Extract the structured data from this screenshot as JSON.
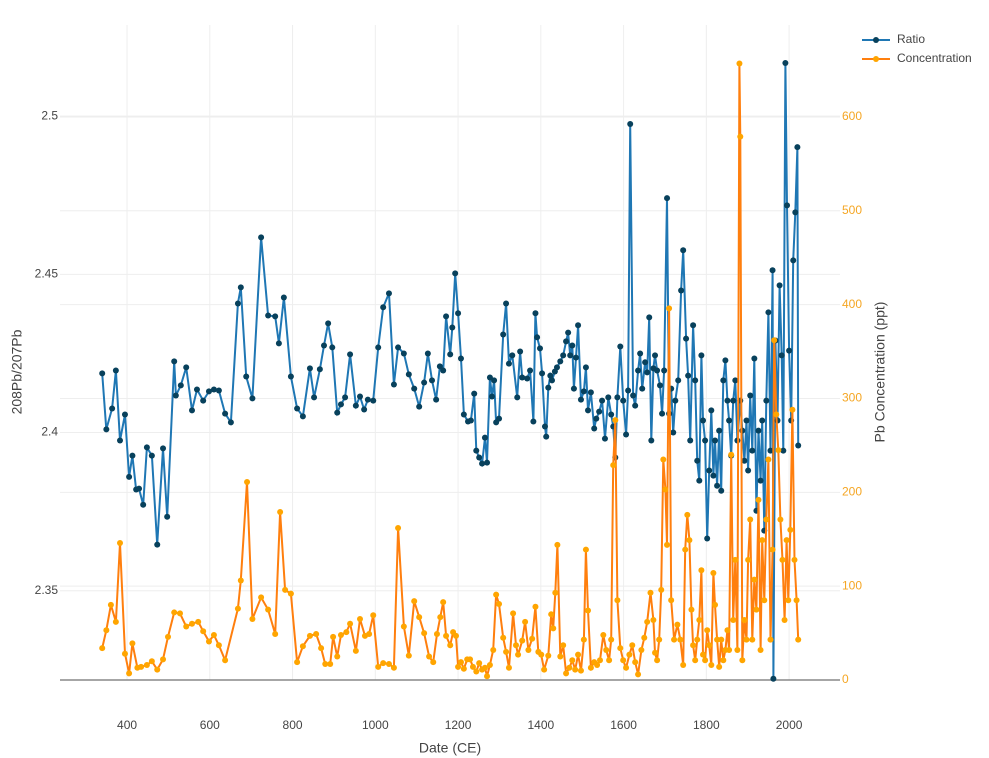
{
  "chart_data": {
    "type": "line",
    "x_label": "Date (CE)",
    "y_label": "208Pb/207Pb",
    "y2_label": "Pb Concentration (ppt)",
    "xlim": [
      238,
      2123
    ],
    "xticks": [
      400,
      600,
      800,
      1000,
      1200,
      1400,
      1600,
      1800,
      2000
    ],
    "ylim": [
      2.3218,
      2.5288
    ],
    "yticks": [
      2.35,
      2.4,
      2.45,
      2.5
    ],
    "y2lim": [
      0,
      698
    ],
    "y2ticks": [
      0,
      100,
      200,
      300,
      400,
      500,
      600
    ],
    "y2_color": "#f5a623",
    "grid": true,
    "legend": "top-right",
    "series": [
      {
        "name": "Ratio",
        "color": "#1f77b4",
        "marker_color": "#08415c",
        "axis": "y",
        "x": [
          340,
          350,
          364,
          373,
          383,
          395,
          405,
          413,
          422,
          429,
          439,
          448,
          460,
          473,
          487,
          497,
          514,
          518,
          530,
          543,
          557,
          569,
          584,
          598,
          610,
          622,
          637,
          651,
          668,
          675,
          688,
          703,
          724,
          741,
          758,
          767,
          779,
          796,
          811,
          825,
          842,
          852,
          866,
          876,
          886,
          896,
          908,
          917,
          927,
          939,
          953,
          963,
          973,
          982,
          995,
          1007,
          1019,
          1033,
          1045,
          1055,
          1069,
          1081,
          1094,
          1106,
          1118,
          1127,
          1137,
          1147,
          1156,
          1164,
          1171,
          1181,
          1186,
          1193,
          1200,
          1207,
          1214,
          1224,
          1231,
          1239,
          1244,
          1251,
          1258,
          1265,
          1270,
          1277,
          1282,
          1287,
          1292,
          1299,
          1309,
          1316,
          1323,
          1331,
          1343,
          1350,
          1355,
          1367,
          1374,
          1382,
          1387,
          1391,
          1398,
          1403,
          1410,
          1413,
          1418,
          1423,
          1427,
          1434,
          1439,
          1447,
          1454,
          1461,
          1466,
          1471,
          1476,
          1480,
          1485,
          1490,
          1497,
          1504,
          1509,
          1514,
          1521,
          1529,
          1534,
          1541,
          1548,
          1555,
          1563,
          1570,
          1575,
          1580,
          1585,
          1592,
          1599,
          1606,
          1611,
          1616,
          1623,
          1628,
          1635,
          1640,
          1645,
          1652,
          1657,
          1662,
          1667,
          1672,
          1676,
          1681,
          1688,
          1693,
          1698,
          1705,
          1710,
          1715,
          1720,
          1725,
          1732,
          1739,
          1744,
          1751,
          1756,
          1761,
          1768,
          1773,
          1778,
          1783,
          1788,
          1792,
          1797,
          1802,
          1807,
          1812,
          1817,
          1821,
          1826,
          1831,
          1836,
          1841,
          1846,
          1851,
          1855,
          1860,
          1865,
          1870,
          1875,
          1882,
          1887,
          1892,
          1897,
          1901,
          1906,
          1911,
          1916,
          1921,
          1926,
          1931,
          1935,
          1940,
          1945,
          1950,
          1955,
          1960,
          1962,
          1967,
          1972,
          1977,
          1982,
          1986,
          1991,
          1995,
          2000,
          2005,
          2010,
          2015,
          2020,
          2022
        ],
        "values": [
          2.4187,
          2.401,
          2.4076,
          2.4196,
          2.3975,
          2.4057,
          2.386,
          2.3927,
          2.382,
          2.3823,
          2.3772,
          2.3953,
          2.3927,
          2.3646,
          2.395,
          2.3734,
          2.4225,
          2.4117,
          2.4149,
          2.4206,
          2.407,
          2.4136,
          2.4101,
          2.413,
          2.4136,
          2.4133,
          2.406,
          2.4032,
          2.4408,
          2.4459,
          2.4177,
          2.4108,
          2.4617,
          2.437,
          2.4367,
          2.4282,
          2.4427,
          2.4177,
          2.4076,
          2.4051,
          2.4203,
          2.4111,
          2.42,
          2.4275,
          2.4345,
          2.4269,
          2.4063,
          2.4089,
          2.4111,
          2.4247,
          2.4085,
          2.4114,
          2.4073,
          2.4104,
          2.4101,
          2.4269,
          2.4396,
          2.444,
          2.4152,
          2.4269,
          2.425,
          2.4184,
          2.4139,
          2.4082,
          2.4158,
          2.425,
          2.4165,
          2.4104,
          2.4209,
          2.4196,
          2.4367,
          2.4247,
          2.4332,
          2.4503,
          2.4377,
          2.4234,
          2.4057,
          2.4035,
          2.4038,
          2.4123,
          2.3943,
          2.3921,
          2.3902,
          2.3984,
          2.3905,
          2.4174,
          2.4114,
          2.4165,
          2.4032,
          2.4044,
          2.431,
          2.4408,
          2.4218,
          2.4244,
          2.4111,
          2.4256,
          2.4174,
          2.4171,
          2.4196,
          2.4035,
          2.4377,
          2.4301,
          2.4266,
          2.4187,
          2.4019,
          2.3987,
          2.4142,
          2.418,
          2.4165,
          2.4193,
          2.4206,
          2.4225,
          2.4244,
          2.4288,
          2.4316,
          2.4244,
          2.4275,
          2.4139,
          2.4237,
          2.4339,
          2.4104,
          2.413,
          2.4206,
          2.407,
          2.4127,
          2.4013,
          2.4044,
          2.4066,
          2.4101,
          2.3981,
          2.4111,
          2.4057,
          2.4019,
          2.3921,
          2.4111,
          2.4272,
          2.4101,
          2.3994,
          2.4133,
          2.4975,
          2.4117,
          2.4085,
          2.4196,
          2.425,
          2.4139,
          2.4222,
          2.419,
          2.4364,
          2.3975,
          2.4203,
          2.4244,
          2.4196,
          2.4149,
          2.406,
          2.4196,
          2.4741,
          2.406,
          2.4139,
          2.4,
          2.4101,
          2.4165,
          2.4449,
          2.4576,
          2.4297,
          2.418,
          2.3975,
          2.4339,
          2.4165,
          2.3911,
          2.3848,
          2.4244,
          2.4038,
          2.3975,
          2.3665,
          2.388,
          2.407,
          2.3864,
          2.3975,
          2.3832,
          2.4006,
          2.3816,
          2.4165,
          2.4228,
          2.4101,
          2.4038,
          2.3927,
          2.4101,
          2.4165,
          2.3975,
          2.4101,
          2.4006,
          2.3911,
          2.4038,
          2.388,
          2.4117,
          2.3943,
          2.4234,
          2.3753,
          2.4006,
          2.3848,
          2.4038,
          2.369,
          2.4101,
          2.438,
          2.3943,
          2.4513,
          2.3222,
          2.4291,
          2.4038,
          2.4465,
          2.4244,
          2.3943,
          2.5168,
          2.4718,
          2.4259,
          2.4038,
          2.4544,
          2.4696,
          2.4902,
          2.3959
        ]
      },
      {
        "name": "Concentration",
        "color": "#ff7f0e",
        "marker_color": "#ffa500",
        "axis": "y2",
        "x": [
          340,
          350,
          361,
          373,
          383,
          395,
          405,
          413,
          425,
          434,
          448,
          460,
          473,
          487,
          499,
          514,
          528,
          543,
          557,
          572,
          584,
          598,
          610,
          622,
          637,
          668,
          675,
          690,
          703,
          724,
          741,
          758,
          770,
          782,
          796,
          811,
          825,
          842,
          857,
          869,
          879,
          891,
          898,
          908,
          917,
          930,
          939,
          953,
          963,
          975,
          985,
          995,
          1007,
          1019,
          1033,
          1045,
          1055,
          1069,
          1081,
          1094,
          1106,
          1118,
          1130,
          1140,
          1149,
          1157,
          1164,
          1171,
          1181,
          1188,
          1195,
          1200,
          1207,
          1214,
          1222,
          1229,
          1236,
          1244,
          1251,
          1258,
          1265,
          1270,
          1277,
          1285,
          1292,
          1299,
          1309,
          1316,
          1323,
          1333,
          1340,
          1345,
          1355,
          1362,
          1370,
          1379,
          1387,
          1394,
          1401,
          1408,
          1418,
          1425,
          1430,
          1435,
          1440,
          1447,
          1454,
          1461,
          1469,
          1476,
          1483,
          1490,
          1497,
          1504,
          1509,
          1514,
          1521,
          1529,
          1536,
          1543,
          1551,
          1558,
          1565,
          1570,
          1575,
          1580,
          1585,
          1592,
          1599,
          1606,
          1614,
          1621,
          1628,
          1635,
          1643,
          1650,
          1657,
          1665,
          1672,
          1676,
          1681,
          1686,
          1691,
          1696,
          1701,
          1705,
          1710,
          1715,
          1722,
          1730,
          1737,
          1744,
          1749,
          1754,
          1759,
          1764,
          1768,
          1773,
          1778,
          1783,
          1788,
          1792,
          1797,
          1802,
          1807,
          1812,
          1817,
          1821,
          1826,
          1831,
          1836,
          1841,
          1846,
          1851,
          1855,
          1860,
          1865,
          1870,
          1875,
          1880,
          1882,
          1887,
          1892,
          1897,
          1901,
          1906,
          1911,
          1916,
          1921,
          1926,
          1931,
          1935,
          1940,
          1945,
          1950,
          1955,
          1960,
          1964,
          1969,
          1974,
          1979,
          1984,
          1989,
          1994,
          1998,
          2003,
          2008,
          2013,
          2018,
          2022
        ],
        "values": [
          34,
          53,
          80,
          62,
          146,
          28,
          7,
          39,
          13,
          14,
          16,
          20,
          11,
          22,
          46,
          72,
          71,
          57,
          60,
          62,
          52,
          41,
          48,
          37,
          21,
          76,
          106,
          211,
          65,
          88,
          75,
          49,
          179,
          96,
          92,
          19,
          36,
          47,
          49,
          34,
          17,
          17,
          46,
          25,
          48,
          51,
          60,
          31,
          65,
          47,
          49,
          69,
          14,
          18,
          17,
          13,
          162,
          57,
          26,
          84,
          67,
          50,
          25,
          19,
          49,
          67,
          83,
          47,
          37,
          51,
          47,
          14,
          19,
          12,
          22,
          22,
          14,
          9,
          18,
          11,
          13,
          4,
          16,
          32,
          91,
          81,
          45,
          30,
          13,
          71,
          37,
          27,
          42,
          62,
          32,
          44,
          78,
          30,
          27,
          11,
          26,
          70,
          55,
          93,
          144,
          25,
          37,
          7,
          13,
          21,
          11,
          27,
          10,
          43,
          139,
          74,
          13,
          19,
          16,
          21,
          48,
          32,
          21,
          43,
          229,
          277,
          85,
          34,
          21,
          13,
          27,
          37,
          19,
          6,
          32,
          45,
          62,
          93,
          64,
          29,
          21,
          43,
          96,
          235,
          203,
          144,
          396,
          85,
          43,
          59,
          43,
          16,
          139,
          176,
          149,
          75,
          37,
          21,
          43,
          64,
          117,
          27,
          21,
          53,
          37,
          16,
          114,
          80,
          43,
          14,
          43,
          21,
          32,
          53,
          32,
          240,
          64,
          128,
          32,
          657,
          579,
          21,
          64,
          43,
          128,
          171,
          43,
          107,
          75,
          192,
          32,
          149,
          85,
          171,
          235,
          43,
          139,
          362,
          283,
          245,
          171,
          128,
          64,
          149,
          85,
          160,
          288,
          128,
          85,
          43
        ]
      }
    ]
  }
}
